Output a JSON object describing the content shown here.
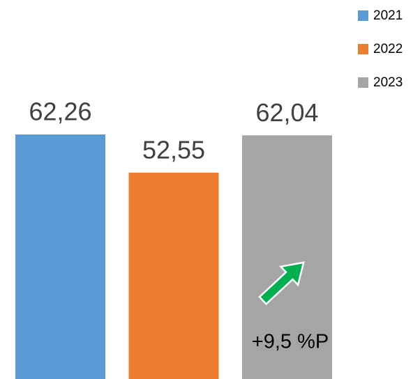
{
  "chart_data": {
    "type": "bar",
    "categories": [
      null
    ],
    "series": [
      {
        "name": "2021",
        "color": "#5b9bd5",
        "values": [
          62.26
        ],
        "value_labels": [
          "62,26"
        ]
      },
      {
        "name": "2022",
        "color": "#ed7d31",
        "values": [
          52.55
        ],
        "value_labels": [
          "52,55"
        ]
      },
      {
        "name": "2023",
        "color": "#a5a5a5",
        "values": [
          62.04
        ],
        "value_labels": [
          "62,04"
        ]
      }
    ],
    "ylim": [
      0,
      96.5
    ],
    "legend": "top-right",
    "annotation": "+9,5 %P"
  }
}
